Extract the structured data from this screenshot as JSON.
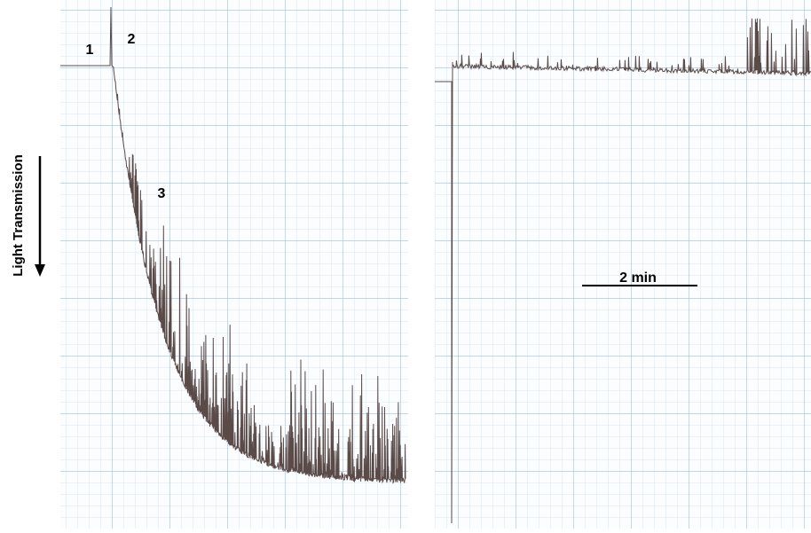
{
  "annotations": [
    "1",
    "2",
    "3"
  ],
  "axis_label": "Light Transmission",
  "scale_bar": "2 min"
}
